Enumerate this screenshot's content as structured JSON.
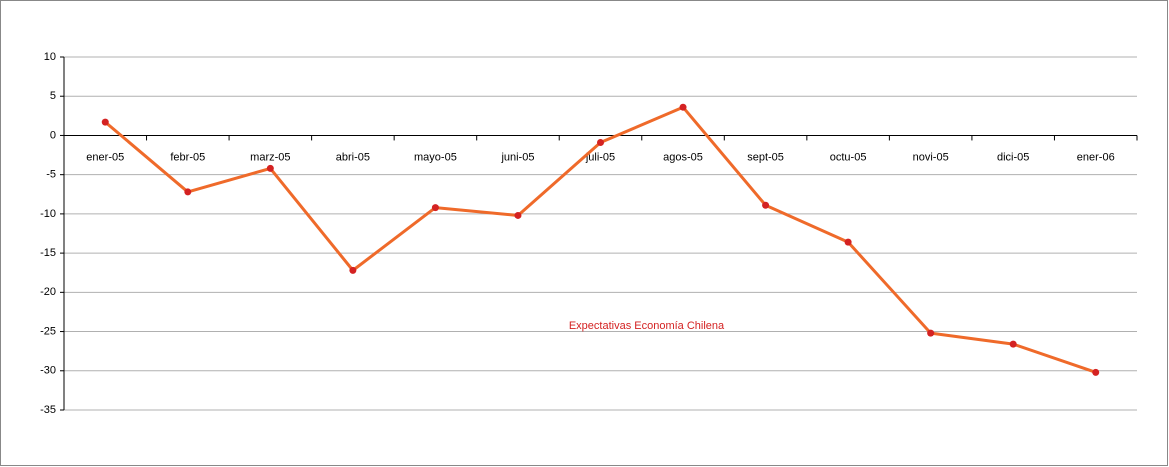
{
  "chart_data": {
    "type": "line",
    "categories": [
      "ener-05",
      "febr-05",
      "marz-05",
      "abri-05",
      "mayo-05",
      "juni-05",
      "juli-05",
      "agos-05",
      "sept-05",
      "octu-05",
      "novi-05",
      "dici-05",
      "ener-06"
    ],
    "series": [
      {
        "name": "Expectativas Economía Chilena",
        "color": "#ef6a2a",
        "marker_color": "#d42222",
        "values": [
          1.7,
          -7.2,
          -4.2,
          -17.2,
          -9.2,
          -10.2,
          -0.9,
          3.6,
          -8.9,
          -13.6,
          -25.2,
          -26.6,
          -30.2
        ]
      }
    ],
    "ylim": [
      -35,
      10
    ],
    "yticks": [
      10,
      5,
      0,
      -5,
      -10,
      -15,
      -20,
      -25,
      -30,
      -35
    ],
    "grid": true
  }
}
